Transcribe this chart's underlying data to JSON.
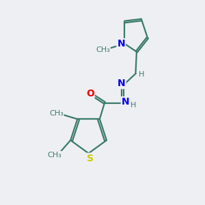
{
  "bg_color": "#eeeff3",
  "bond_color": "#3a7a6a",
  "N_color": "#0000ee",
  "O_color": "#ee0000",
  "S_color": "#cccc00",
  "H_color": "#3a7a6a",
  "line_width": 1.6,
  "figsize": [
    3.0,
    3.0
  ],
  "dpi": 100,
  "xlim": [
    0,
    10
  ],
  "ylim": [
    0,
    10
  ]
}
